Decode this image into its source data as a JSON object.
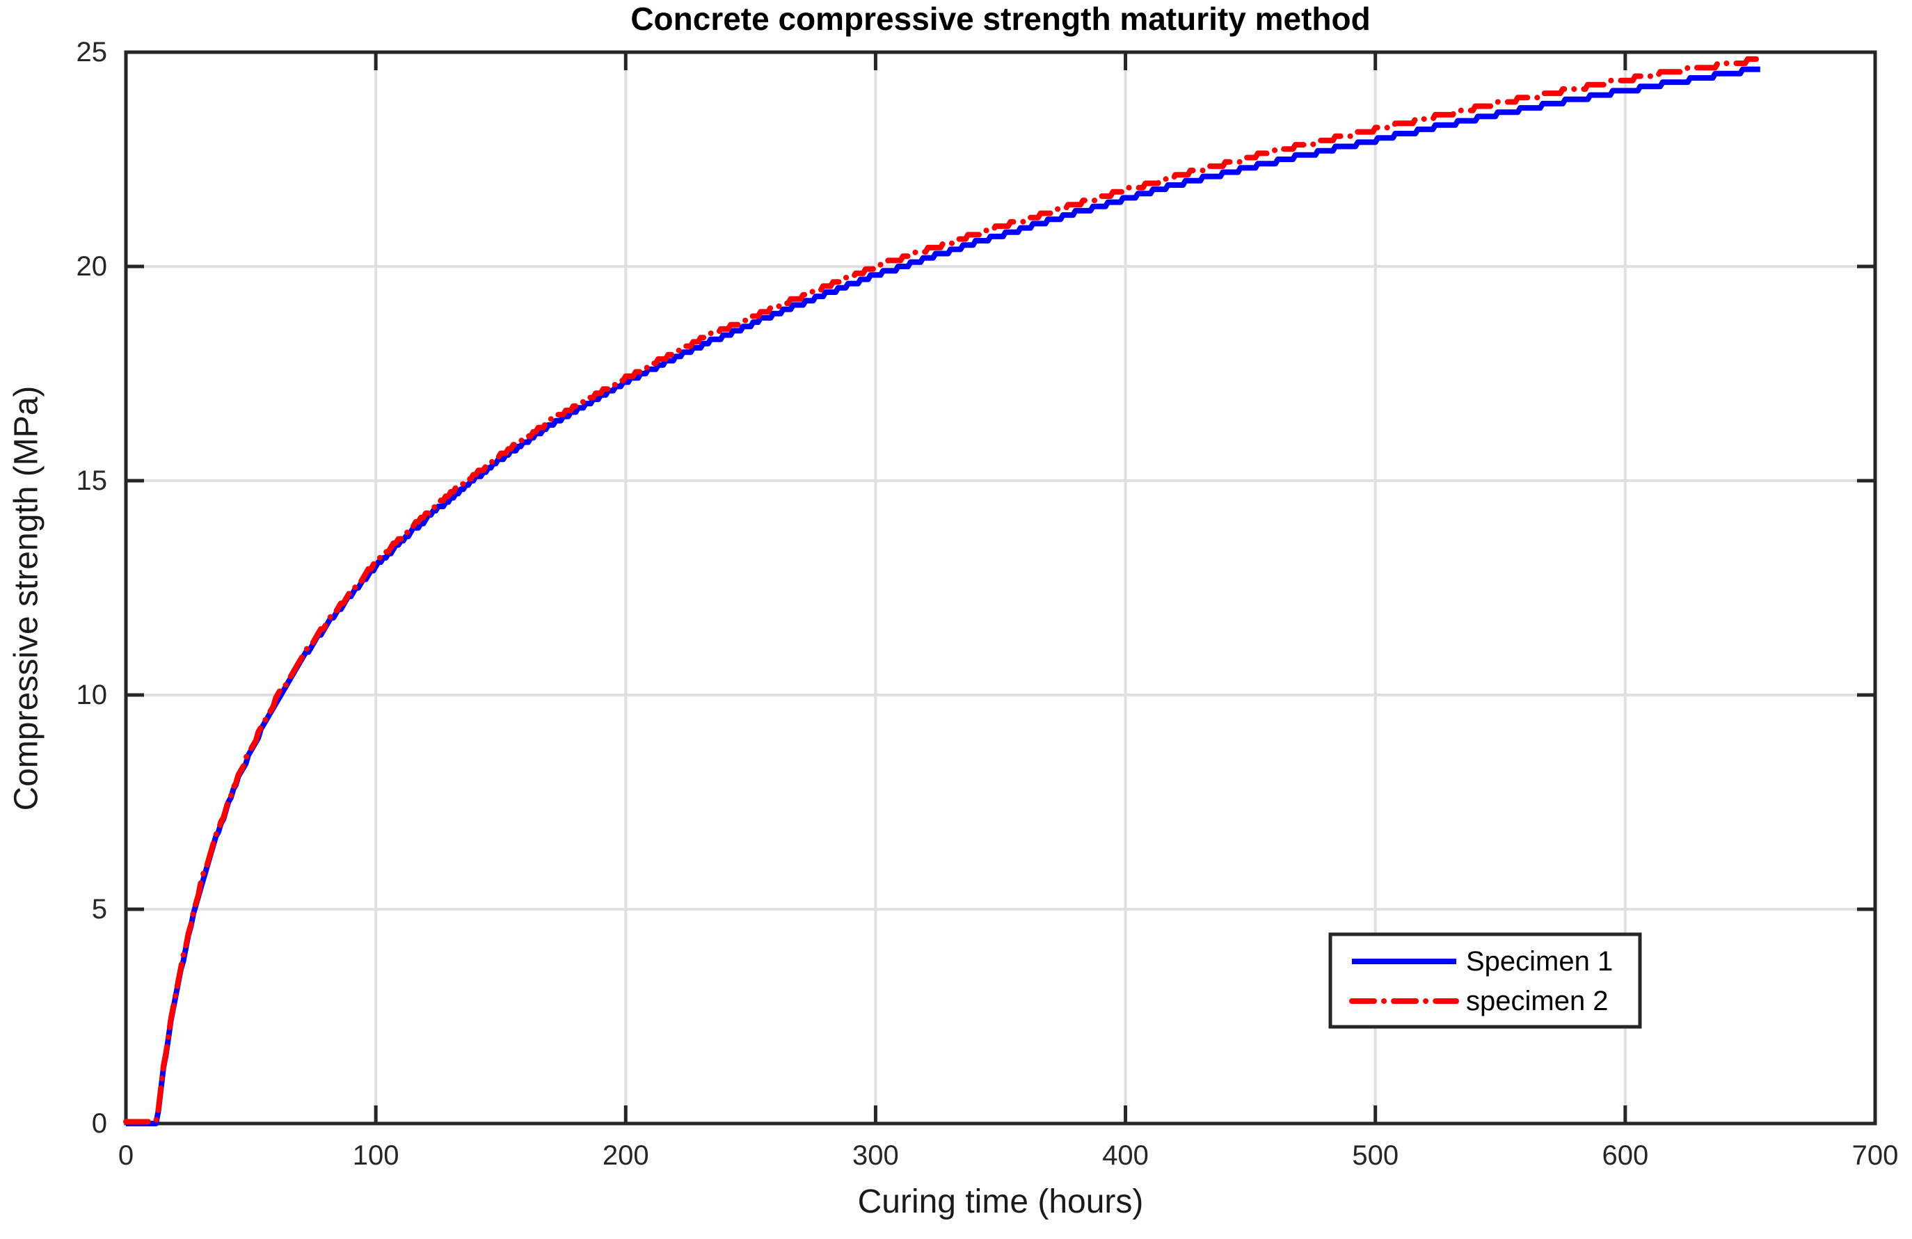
{
  "chart_data": {
    "type": "line",
    "title": "Concrete compressive strength maturity method",
    "xlabel": "Curing time (hours)",
    "ylabel": "Compressive strength (MPa)",
    "xlim": [
      0,
      700
    ],
    "ylim": [
      0,
      25
    ],
    "x_tick_values": [
      0,
      100,
      200,
      300,
      400,
      500,
      600,
      700
    ],
    "y_tick_values": [
      0,
      5,
      10,
      15,
      20,
      25
    ],
    "x_ticks": [
      "0",
      "100",
      "200",
      "300",
      "400",
      "500",
      "600",
      "700"
    ],
    "y_ticks": [
      "0",
      "5",
      "10",
      "15",
      "20",
      "25"
    ],
    "grid": "on",
    "legend_position": "lower-right",
    "series": [
      {
        "name": "Specimen 1",
        "color": "#0000ff",
        "style": "solid",
        "x": [
          0,
          12,
          13,
          15,
          18,
          20,
          25,
          30,
          35,
          40,
          45,
          50,
          60,
          70,
          80,
          90,
          100,
          115,
          130,
          150,
          170,
          200,
          230,
          260,
          300,
          340,
          380,
          420,
          460,
          500,
          540,
          580,
          620,
          654
        ],
        "y": [
          0,
          0,
          0.3,
          1.25,
          2.35,
          3.0,
          4.4,
          5.55,
          6.5,
          7.3,
          8.05,
          8.7,
          9.85,
          10.8,
          11.6,
          12.35,
          13.0,
          13.85,
          14.6,
          15.5,
          16.3,
          17.3,
          18.15,
          18.9,
          19.8,
          20.55,
          21.25,
          21.9,
          22.45,
          22.95,
          23.45,
          23.9,
          24.3,
          24.62
        ]
      },
      {
        "name": "specimen 2",
        "color": "#ff0000",
        "style": "dash-dot",
        "x": [
          0,
          12,
          13,
          15,
          18,
          20,
          25,
          30,
          35,
          40,
          45,
          50,
          60,
          70,
          80,
          90,
          100,
          115,
          130,
          150,
          170,
          200,
          230,
          260,
          300,
          340,
          380,
          420,
          460,
          500,
          540,
          580,
          620,
          654
        ],
        "y": [
          0,
          0,
          0.3,
          1.3,
          2.4,
          3.05,
          4.45,
          5.6,
          6.55,
          7.35,
          8.1,
          8.75,
          9.9,
          10.85,
          11.65,
          12.4,
          13.1,
          13.95,
          14.7,
          15.6,
          16.4,
          17.4,
          18.3,
          19.05,
          20.0,
          20.75,
          21.45,
          22.1,
          22.7,
          23.2,
          23.7,
          24.15,
          24.55,
          24.84
        ]
      }
    ]
  },
  "colors": {
    "frame": "#262626",
    "grid": "#e0e0e0",
    "tick": "#262626",
    "background": "#ffffff",
    "series1": "#0000ff",
    "series2": "#ff0000"
  }
}
